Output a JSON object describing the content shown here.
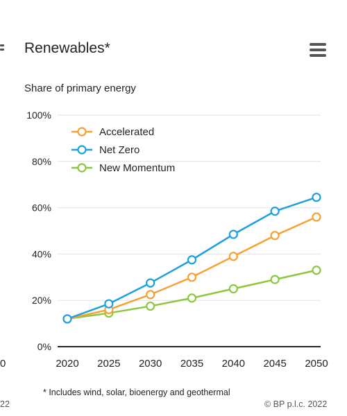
{
  "header": {
    "title": "Renewables*",
    "menu_icon": "hamburger-icon"
  },
  "subtitle": "Share of primary energy",
  "footnote": "* Includes wind, solar, bioenergy and geothermal",
  "credit": "© BP p.l.c. 2022",
  "credit_cut": "22",
  "edge_tick": "0",
  "chart_data": {
    "type": "line",
    "title": "Renewables*",
    "ylabel": "Share of primary energy",
    "xlabel": "",
    "x": [
      2020,
      2025,
      2030,
      2035,
      2040,
      2045,
      2050
    ],
    "x_tick_labels": [
      "2020",
      "2025",
      "2030",
      "2035",
      "2040",
      "2045",
      "2050"
    ],
    "ylim": [
      0,
      100
    ],
    "y_ticks": [
      0,
      20,
      40,
      60,
      80,
      100
    ],
    "y_tick_labels": [
      "0%",
      "20%",
      "40%",
      "60%",
      "80%",
      "100%"
    ],
    "grid": true,
    "legend_position": "top-left",
    "series": [
      {
        "name": "Accelerated",
        "color": "#f7a035",
        "values": [
          12,
          16,
          22.5,
          30,
          39,
          48,
          56
        ]
      },
      {
        "name": "Net Zero",
        "color": "#1ea0dc",
        "values": [
          12,
          18.5,
          27.5,
          37.5,
          48.5,
          58.5,
          64.5
        ]
      },
      {
        "name": "New Momentum",
        "color": "#8dc63f",
        "values": [
          12,
          14.5,
          17.5,
          21,
          25,
          29,
          33
        ]
      }
    ]
  }
}
